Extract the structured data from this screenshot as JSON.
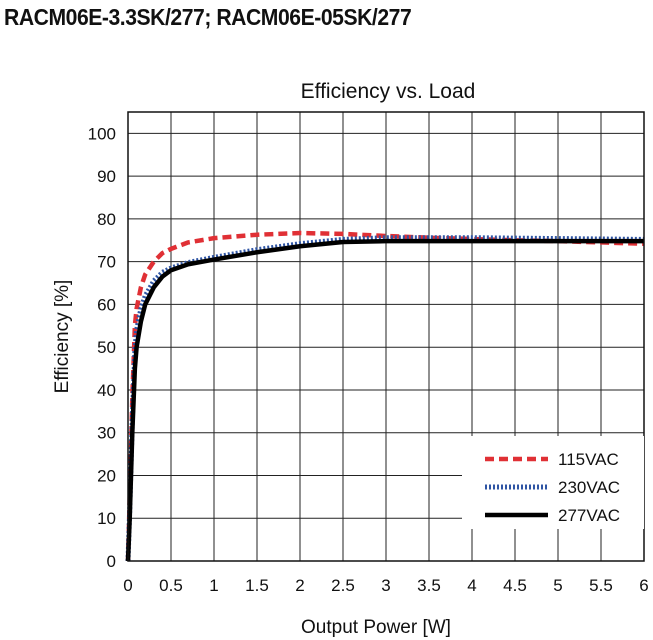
{
  "header": {
    "title": "RACM06E-3.3SK/277; RACM06E-05SK/277"
  },
  "chart_data": {
    "type": "line",
    "title": "Efficiency vs. Load",
    "xlabel": "Output Power [W]",
    "ylabel": "Efficiency [%]",
    "xlim": [
      0,
      6
    ],
    "ylim": [
      0,
      105
    ],
    "xticks": [
      0,
      0.5,
      1,
      1.5,
      2,
      2.5,
      3,
      3.5,
      4,
      4.5,
      5,
      5.5,
      6
    ],
    "xtick_labels": [
      "0",
      "0.5",
      "1",
      "1.5",
      "2",
      "2.5",
      "3",
      "3.5",
      "4",
      "4.5",
      "5",
      "5.5",
      "6"
    ],
    "yticks": [
      0,
      10,
      20,
      30,
      40,
      50,
      60,
      70,
      80,
      90,
      100
    ],
    "ytick_labels": [
      "0",
      "10",
      "20",
      "30",
      "40",
      "50",
      "60",
      "70",
      "80",
      "90",
      "100"
    ],
    "grid": true,
    "legend_position": "bottom-right",
    "series": [
      {
        "name": "115VAC",
        "color": "#e03035",
        "style": "dashed",
        "x": [
          0,
          0.02,
          0.05,
          0.08,
          0.1,
          0.15,
          0.2,
          0.3,
          0.4,
          0.5,
          0.7,
          1,
          1.5,
          2,
          2.5,
          3,
          3.5,
          4,
          4.5,
          5,
          5.5,
          6
        ],
        "y": [
          0,
          15,
          38,
          55,
          59,
          64,
          67,
          70,
          72,
          73,
          74.5,
          75.5,
          76.3,
          76.7,
          76.5,
          76,
          75.6,
          75.3,
          75,
          74.8,
          74.5,
          74.2
        ]
      },
      {
        "name": "230VAC",
        "color": "#2f55a4",
        "style": "dotted",
        "x": [
          0,
          0.02,
          0.05,
          0.08,
          0.1,
          0.15,
          0.2,
          0.3,
          0.4,
          0.5,
          0.7,
          1,
          1.5,
          2,
          2.5,
          3,
          3.5,
          4,
          4.5,
          5,
          5.5,
          6
        ],
        "y": [
          0,
          12,
          33,
          49,
          54,
          59,
          62,
          65.5,
          67.5,
          68.5,
          69.8,
          71,
          72.8,
          74.2,
          75.2,
          75.6,
          75.6,
          75.6,
          75.5,
          75.4,
          75.3,
          75.2
        ]
      },
      {
        "name": "277VAC",
        "color": "#000000",
        "style": "solid",
        "x": [
          0,
          0.02,
          0.05,
          0.08,
          0.1,
          0.15,
          0.2,
          0.3,
          0.4,
          0.5,
          0.7,
          1,
          1.5,
          2,
          2.5,
          3,
          3.5,
          4,
          4.5,
          5,
          5.5,
          6
        ],
        "y": [
          0,
          10,
          30,
          45,
          50,
          56,
          60,
          64,
          66.5,
          68,
          69.4,
          70.5,
          72.2,
          73.6,
          74.6,
          74.8,
          74.8,
          74.8,
          74.8,
          74.8,
          74.8,
          74.8
        ]
      }
    ]
  }
}
